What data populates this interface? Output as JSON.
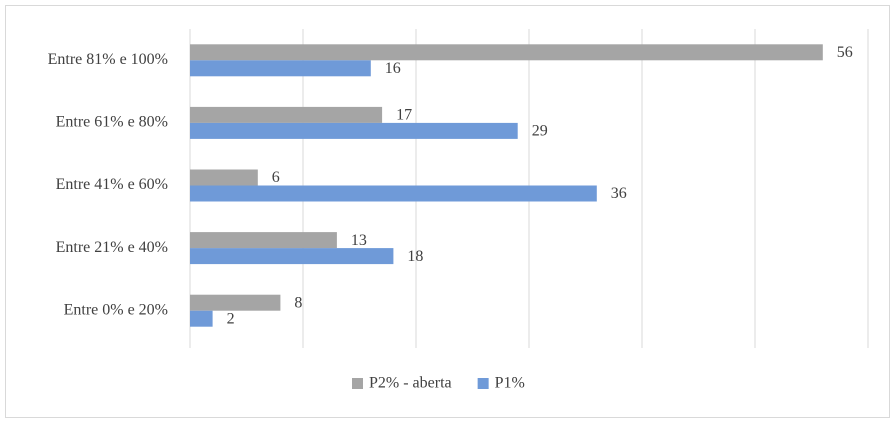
{
  "chart_data": {
    "type": "hbar",
    "categories": [
      "Entre 81% e 100%",
      "Entre 61% e 80%",
      "Entre 41% e 60%",
      "Entre 21% e 40%",
      "Entre 0% e 20%"
    ],
    "series": [
      {
        "name": "P2% - aberta",
        "color": "#a5a5a5",
        "values": [
          56,
          17,
          6,
          13,
          8
        ]
      },
      {
        "name": "P1%",
        "color": "#6f9ad8",
        "values": [
          16,
          29,
          36,
          18,
          2
        ]
      }
    ],
    "xlim": [
      0,
      60
    ],
    "xticks": [
      0,
      10,
      20,
      30,
      40,
      50,
      60
    ],
    "grid": true,
    "legend": "bottom"
  }
}
